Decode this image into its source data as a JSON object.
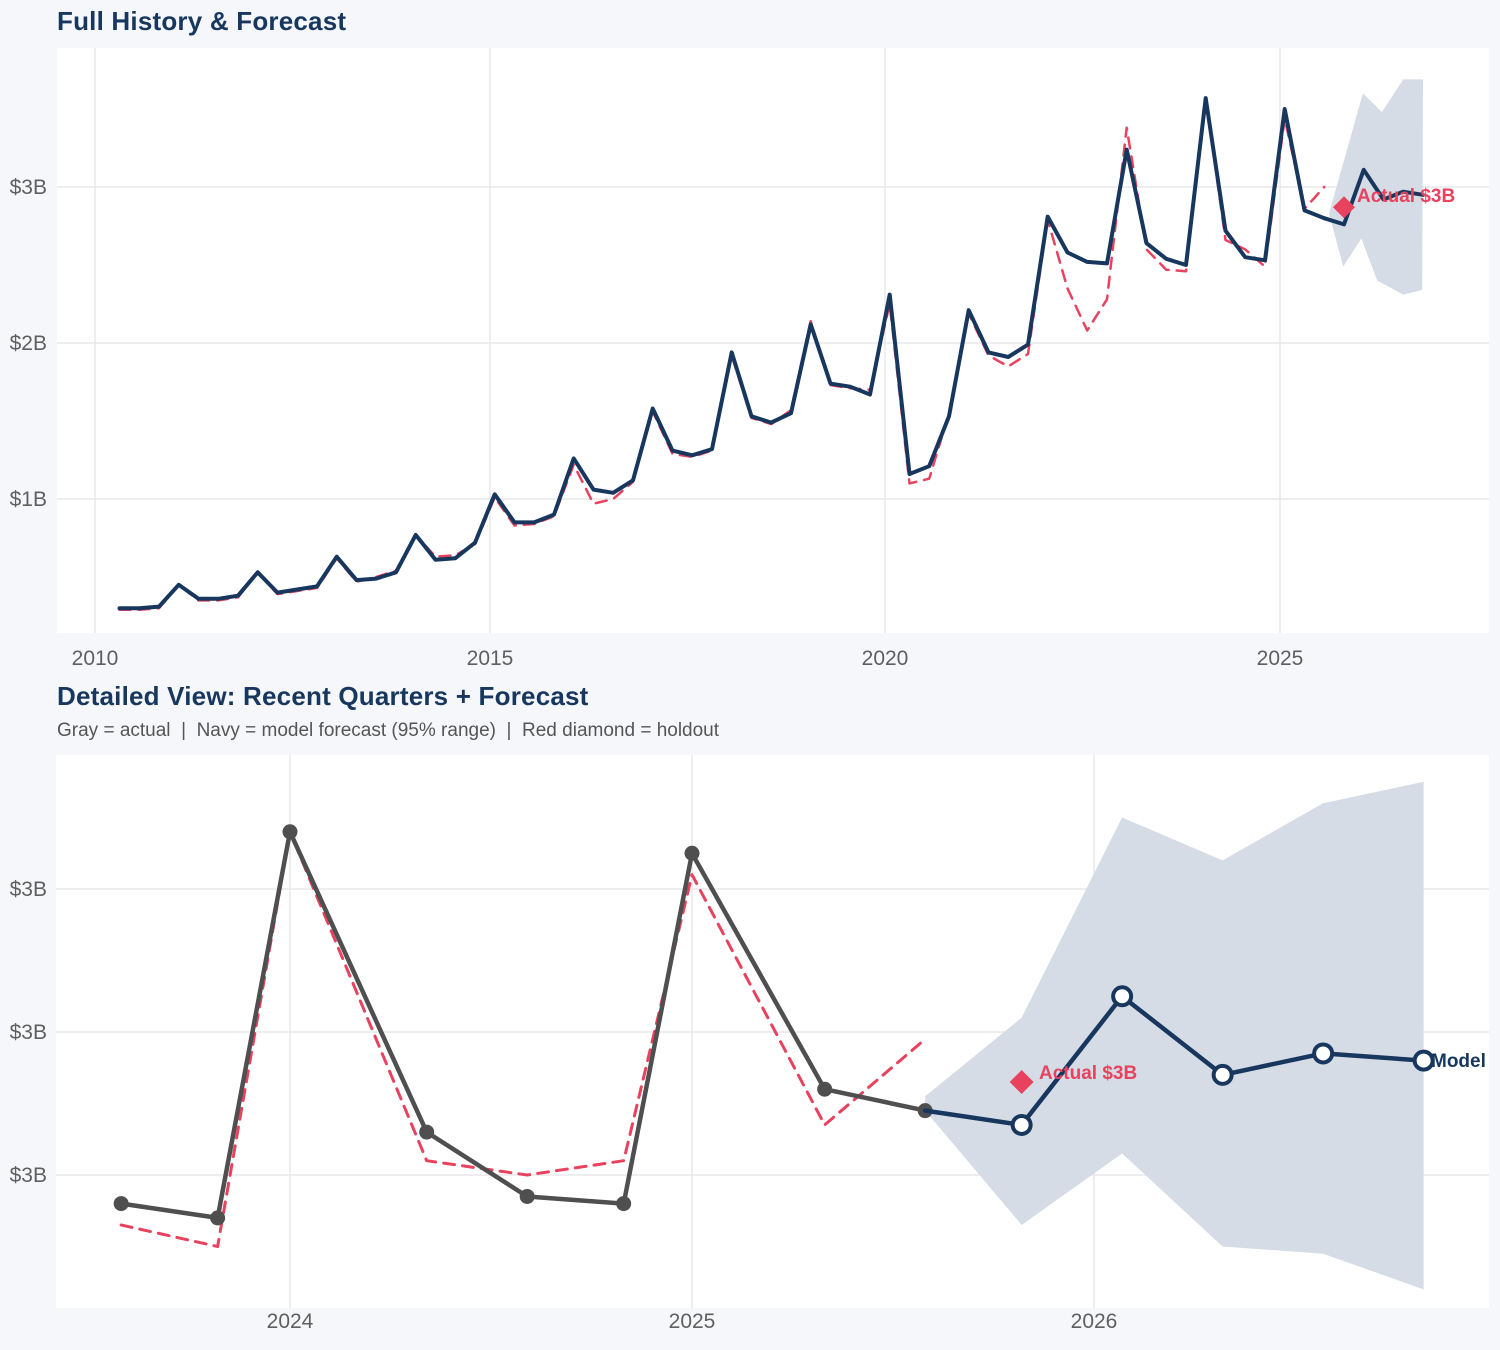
{
  "colors": {
    "navy": "#17375e",
    "red": "#e8425f",
    "gray_actual": "#4f4f4f",
    "band_fill": "#d6dce5",
    "grid": "#e8e8ec",
    "tick_text": "#5f5f5f",
    "plot_background": "#ffffff",
    "page_background": "#f5f7fa"
  },
  "chart_data": [
    {
      "id": "full-history",
      "type": "line",
      "title": "Full History & Forecast",
      "x_axis": {
        "ticks": [
          2010,
          2015,
          2020,
          2025
        ],
        "tick_labels": [
          "2010",
          "2015",
          "2020",
          "2025"
        ],
        "range": [
          2009.5,
          2027.6
        ]
      },
      "y_axis": {
        "ticks": [
          1,
          2,
          3
        ],
        "tick_labels": [
          "$1B",
          "$2B",
          "$3B"
        ],
        "unit": "billions USD"
      },
      "series": [
        {
          "name": "forecast-95-band",
          "kind": "band",
          "color": "#d6dce5",
          "x_upper": [
            2025.62,
            2026.05,
            2026.29,
            2026.56,
            2026.81
          ],
          "upper": [
            2.83,
            3.6,
            3.48,
            3.69,
            3.69
          ],
          "x_lower": [
            2025.8,
            2026.03,
            2026.23,
            2026.56,
            2026.8
          ],
          "lower": [
            2.49,
            2.67,
            2.4,
            2.31,
            2.34
          ]
        },
        {
          "name": "fitted",
          "kind": "line",
          "color": "#e8425f",
          "dash": true,
          "width": 2.5,
          "x_start": 2010.31,
          "x_step": 0.25,
          "values": [
            0.29,
            0.29,
            0.3,
            0.45,
            0.35,
            0.35,
            0.37,
            0.53,
            0.39,
            0.41,
            0.43,
            0.62,
            0.47,
            0.5,
            0.54,
            0.77,
            0.63,
            0.64,
            0.71,
            1.01,
            0.83,
            0.84,
            0.89,
            1.22,
            0.97,
            1.0,
            1.11,
            1.56,
            1.29,
            1.27,
            1.31,
            1.92,
            1.52,
            1.48,
            1.57,
            2.14,
            1.73,
            1.71,
            1.7,
            2.25,
            1.1,
            1.13,
            1.55,
            2.19,
            1.92,
            1.85,
            1.93,
            2.79,
            2.35,
            2.08,
            2.28,
            3.38,
            2.6,
            2.47,
            2.46,
            3.57,
            2.66,
            2.6,
            2.49,
            3.44,
            2.86,
            3.0
          ]
        },
        {
          "name": "actual",
          "kind": "line",
          "color": "#17375e",
          "width": 4,
          "x_start": 2010.31,
          "x_step": 0.25,
          "values": [
            0.3,
            0.3,
            0.31,
            0.45,
            0.36,
            0.36,
            0.38,
            0.53,
            0.4,
            0.42,
            0.44,
            0.63,
            0.48,
            0.49,
            0.53,
            0.77,
            0.61,
            0.62,
            0.72,
            1.03,
            0.85,
            0.85,
            0.9,
            1.26,
            1.06,
            1.04,
            1.12,
            1.58,
            1.31,
            1.28,
            1.32,
            1.94,
            1.53,
            1.49,
            1.55,
            2.12,
            1.74,
            1.72,
            1.67,
            2.31,
            1.16,
            1.21,
            1.53,
            2.21,
            1.94,
            1.91,
            1.99,
            2.81,
            2.58,
            2.52,
            2.51,
            3.24,
            2.64,
            2.54,
            2.5,
            3.57,
            2.72,
            2.55,
            2.53,
            3.5,
            2.85,
            2.8
          ]
        },
        {
          "name": "model-forecast",
          "kind": "line",
          "color": "#17375e",
          "width": 4,
          "x": [
            2025.56,
            2025.81,
            2026.06,
            2026.31,
            2026.56,
            2026.81
          ],
          "values": [
            2.8,
            2.76,
            3.11,
            2.92,
            2.97,
            2.95
          ]
        },
        {
          "name": "holdout-actual",
          "kind": "diamond",
          "color": "#e8425f",
          "x": 2025.81,
          "value": 2.87,
          "size": 11
        }
      ],
      "annotations": [
        {
          "id": "holdout-label",
          "text": "Actual $3B",
          "x": 2025.81,
          "value": 2.87,
          "color": "#e8425f"
        }
      ]
    },
    {
      "id": "detailed-view",
      "type": "line",
      "title": "Detailed View: Recent Quarters + Forecast",
      "subtitle": "Gray = actual  |  Navy = model forecast (95% range)  |  Red diamond = holdout",
      "x_axis": {
        "ticks": [
          2024,
          2025,
          2026
        ],
        "tick_labels": [
          "2024",
          "2025",
          "2026"
        ],
        "range": [
          2023.42,
          2026.98
        ]
      },
      "y_axis": {
        "ticks": [
          2.8,
          3.0,
          3.2
        ],
        "tick_labels": [
          "$3B",
          "$3B",
          "$3B"
        ],
        "unit": "billions USD"
      },
      "series": [
        {
          "name": "forecast-95-band",
          "kind": "band",
          "color": "#d6dce5",
          "x_upper": [
            2025.58,
            2025.82,
            2026.07,
            2026.32,
            2026.57,
            2026.82
          ],
          "upper": [
            2.91,
            3.02,
            3.3,
            3.24,
            3.32,
            3.35
          ],
          "x_lower": [
            2025.58,
            2025.82,
            2026.07,
            2026.32,
            2026.57,
            2026.82
          ],
          "lower": [
            2.89,
            2.73,
            2.83,
            2.7,
            2.69,
            2.64
          ]
        },
        {
          "name": "fitted",
          "kind": "line",
          "color": "#e8425f",
          "dash": true,
          "width": 3,
          "x": [
            2023.58,
            2023.82,
            2024.0,
            2024.34,
            2024.59,
            2024.83,
            2025.0,
            2025.33,
            2025.58
          ],
          "values": [
            2.73,
            2.7,
            3.28,
            2.82,
            2.8,
            2.82,
            3.22,
            2.87,
            2.99
          ]
        },
        {
          "name": "actual",
          "kind": "line",
          "color": "#4f4f4f",
          "width": 4.5,
          "marker": "dot",
          "marker_size": 7.5,
          "x": [
            2023.58,
            2023.82,
            2024.0,
            2024.34,
            2024.59,
            2024.83,
            2025.0,
            2025.33,
            2025.58
          ],
          "values": [
            2.76,
            2.74,
            3.28,
            2.86,
            2.77,
            2.76,
            3.25,
            2.92,
            2.89
          ]
        },
        {
          "name": "model-forecast",
          "kind": "line",
          "color": "#17375e",
          "width": 4.5,
          "marker": "open-circle",
          "marker_size": 9,
          "marker_skip_first": true,
          "x": [
            2025.58,
            2025.82,
            2026.07,
            2026.32,
            2026.57,
            2026.82
          ],
          "values": [
            2.89,
            2.87,
            3.05,
            2.94,
            2.97,
            2.96
          ]
        },
        {
          "name": "holdout-actual",
          "kind": "diamond",
          "color": "#e8425f",
          "x": 2025.82,
          "value": 2.93,
          "size": 12
        }
      ],
      "annotations": [
        {
          "id": "holdout-label",
          "text": "Actual $3B",
          "x": 2025.85,
          "value": 2.94,
          "color": "#e8425f"
        },
        {
          "id": "model-label",
          "text": "Model",
          "x": 2026.84,
          "value": 2.96,
          "color": "#17375e"
        }
      ]
    }
  ]
}
